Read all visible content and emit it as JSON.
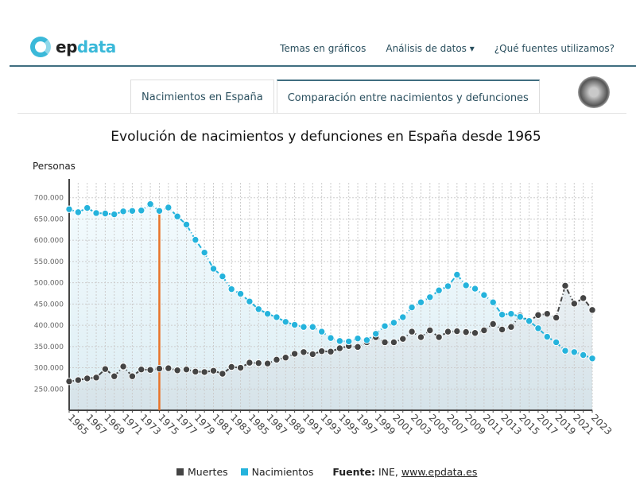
{
  "header": {
    "logo_prefix": "ep",
    "logo_suffix": "data",
    "nav": [
      "Temas en gráficos",
      "Análisis de datos ▾",
      "¿Qué fuentes utilizamos?"
    ]
  },
  "tabs": [
    "Nacimientos en España",
    "Comparación entre nacimientos y defunciones"
  ],
  "chart_data": {
    "type": "line",
    "title": "Evolución de nacimientos y defunciones en España desde 1965",
    "ylabel": "Personas",
    "xlabel": "",
    "ylim": [
      200000,
      735000
    ],
    "yticks": [
      250000,
      300000,
      350000,
      400000,
      450000,
      500000,
      550000,
      600000,
      650000,
      700000
    ],
    "ytick_labels": [
      "250.000",
      "300.000",
      "350.000",
      "400.000",
      "450.000",
      "500.000",
      "550.000",
      "600.000",
      "650.000",
      "700.000"
    ],
    "x": [
      1965,
      1966,
      1967,
      1968,
      1969,
      1970,
      1971,
      1972,
      1973,
      1974,
      1975,
      1976,
      1977,
      1978,
      1979,
      1980,
      1981,
      1982,
      1983,
      1984,
      1985,
      1986,
      1987,
      1988,
      1989,
      1990,
      1991,
      1992,
      1993,
      1994,
      1995,
      1996,
      1997,
      1998,
      1999,
      2000,
      2001,
      2002,
      2003,
      2004,
      2005,
      2006,
      2007,
      2008,
      2009,
      2010,
      2011,
      2012,
      2013,
      2014,
      2015,
      2016,
      2017,
      2018,
      2019,
      2020,
      2021,
      2022,
      2023
    ],
    "xtick_labels": [
      "1965",
      "1967",
      "1969",
      "1971",
      "1973",
      "1975",
      "1977",
      "1979",
      "1981",
      "1983",
      "1985",
      "1987",
      "1989",
      "1991",
      "1993",
      "1995",
      "1997",
      "1999",
      "2001",
      "2003",
      "2005",
      "2007",
      "2009",
      "2011",
      "2013",
      "2015",
      "2017",
      "2019",
      "2021",
      "2023"
    ],
    "series": [
      {
        "name": "Muertes",
        "color": "#444444",
        "values": [
          268000,
          271000,
          275000,
          277000,
          297000,
          280000,
          303000,
          280000,
          296000,
          295000,
          298000,
          299000,
          294000,
          296000,
          291000,
          290000,
          293000,
          286000,
          302000,
          300000,
          312000,
          311000,
          310000,
          319000,
          324000,
          333000,
          337000,
          332000,
          339000,
          338000,
          346000,
          351000,
          349000,
          360000,
          372000,
          360000,
          360000,
          368000,
          385000,
          372000,
          388000,
          372000,
          385000,
          386000,
          384000,
          382000,
          388000,
          403000,
          390000,
          396000,
          423000,
          410000,
          424000,
          427000,
          418000,
          493000,
          451000,
          464000,
          436000
        ]
      },
      {
        "name": "Nacimientos",
        "color": "#25b3dc",
        "values": [
          673000,
          666000,
          676000,
          664000,
          663000,
          661000,
          668000,
          669000,
          670000,
          685000,
          669000,
          677000,
          656000,
          637000,
          601000,
          571000,
          533000,
          515000,
          485000,
          474000,
          456000,
          438000,
          427000,
          419000,
          408000,
          401000,
          396000,
          396000,
          385000,
          370000,
          363000,
          362000,
          369000,
          365000,
          380000,
          398000,
          406000,
          419000,
          442000,
          454000,
          466000,
          482000,
          492000,
          519000,
          494000,
          486000,
          471000,
          454000,
          425000,
          427000,
          420000,
          410000,
          393000,
          373000,
          360000,
          340000,
          337000,
          330000,
          322000
        ]
      }
    ],
    "marker_year": 1975,
    "marker_color": "#e8742a",
    "legend_position": "bottom",
    "grid": true,
    "source_label": "Fuente:",
    "source_text": "INE,",
    "source_link": "www.epdata.es"
  }
}
